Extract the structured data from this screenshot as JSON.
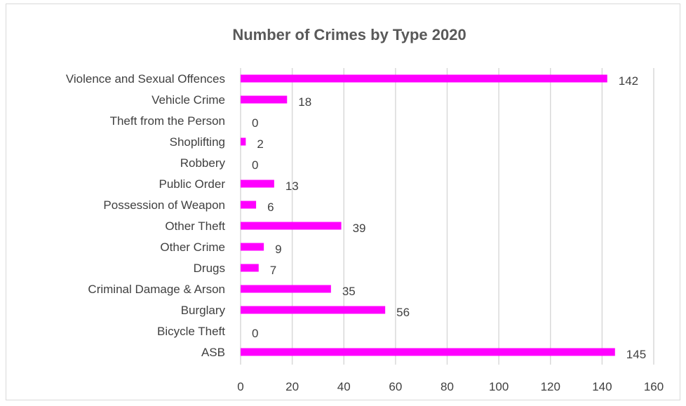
{
  "chart_data": {
    "type": "bar",
    "orientation": "horizontal",
    "title": "Number of Crimes by Type 2020",
    "categories": [
      "Violence and Sexual Offences",
      "Vehicle Crime",
      "Theft from the Person",
      "Shoplifting",
      "Robbery",
      "Public Order",
      "Possession of Weapon",
      "Other Theft",
      "Other Crime",
      "Drugs",
      "Criminal Damage & Arson",
      "Burglary",
      "Bicycle Theft",
      "ASB"
    ],
    "values": [
      142,
      18,
      0,
      2,
      0,
      13,
      6,
      39,
      9,
      7,
      35,
      56,
      0,
      145
    ],
    "xlim": [
      0,
      160
    ],
    "xticks": [
      0,
      20,
      40,
      60,
      80,
      100,
      120,
      140,
      160
    ],
    "data_labels": true,
    "grid": true,
    "legend": "none",
    "bar_color": "#ff00ff",
    "grid_color": "#d9d9d9",
    "text_color": "#404040"
  }
}
